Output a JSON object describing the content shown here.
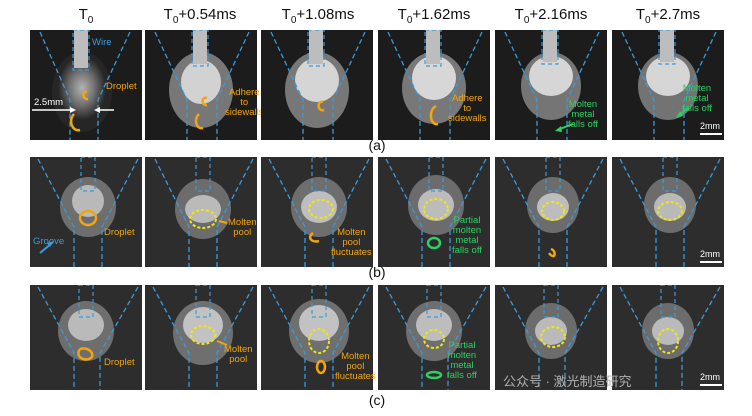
{
  "headers": [
    "T0",
    "T0+0.54ms",
    "T0+1.08ms",
    "T0+1.62ms",
    "T0+2.16ms",
    "T0+2.7ms"
  ],
  "header_base": "T",
  "header_sub": "0",
  "header_suffix": [
    "",
    "+0.54ms",
    "+1.08ms",
    "+1.62ms",
    "+2.16ms",
    "+2.7ms"
  ],
  "row_a": {
    "caption": "(a)",
    "wire": "Wire",
    "droplet": "Droplet",
    "width": "2.5mm",
    "adhere1": [
      "Adhere",
      "to",
      "sidewalls"
    ],
    "adhere2": [
      "Adhere",
      "to",
      "sidewalls"
    ],
    "falls1": [
      "Molten",
      "metal",
      "falls off"
    ],
    "falls2": [
      "Molten",
      "metal",
      "falls off"
    ],
    "scale": "2mm"
  },
  "row_b": {
    "caption": "(b)",
    "groove": "Groove",
    "droplet": "Droplet",
    "pool": [
      "Molten",
      "pool"
    ],
    "fluct": [
      "Molten",
      "pool",
      "fluctuates"
    ],
    "partial": [
      "Partial",
      "molten",
      "metal",
      "falls off"
    ],
    "scale": "2mm"
  },
  "row_c": {
    "caption": "(c)",
    "droplet": "Droplet",
    "pool": [
      "Molten",
      "pool"
    ],
    "fluct": [
      "Molten",
      "pool",
      "fluctuates"
    ],
    "partial": [
      "Partial",
      "molten",
      "metal",
      "falls off"
    ],
    "scale": "2mm"
  },
  "watermark": "公众号 · 激光制造研究",
  "colors": {
    "orange": "#f2a50e",
    "green": "#2ecf63",
    "blue": "#3a9bdc"
  }
}
